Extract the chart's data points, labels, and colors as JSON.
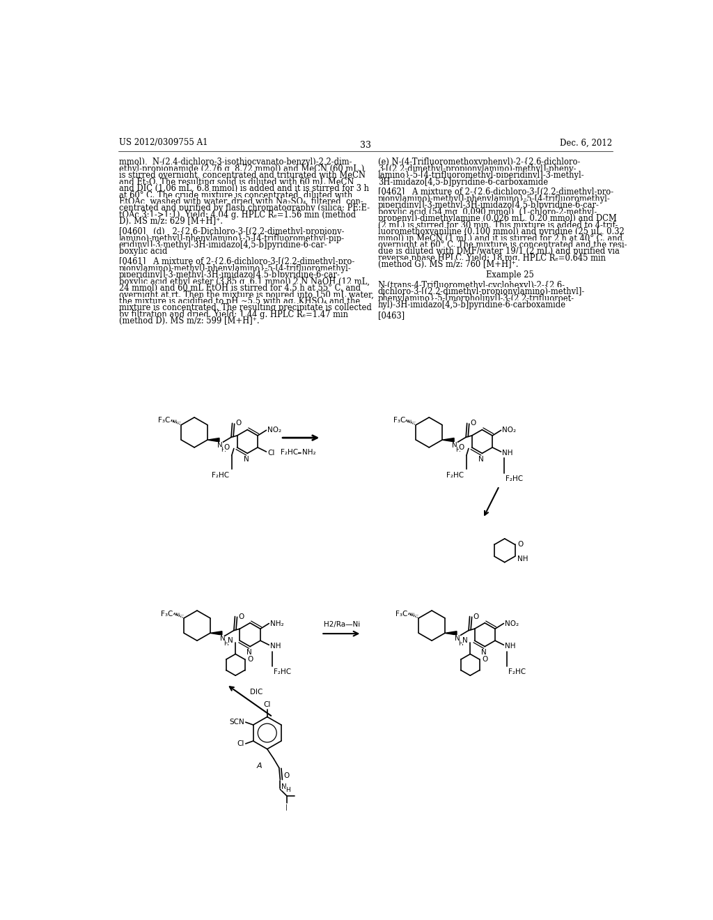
{
  "page_header_left": "US 2012/0309755 A1",
  "page_header_right": "Dec. 6, 2012",
  "page_number": "33",
  "background_color": "#ffffff",
  "left_col": [
    "mmol),  N-(2,4-dichloro-3-isothiocyanato-benzyl)-2,2-dim-",
    "ethyl-propionamide (2.76 g, 8.72 mmol) and MeCN (60 mL.)",
    "is stirred overnight, concentrated and triturated with MeCN",
    "and Et₂O. The resulting solid is diluted with 60 mL MeCN",
    "and DIC (1.06 mL, 6.8 mmol) is added and it is stirred for 3 h",
    "at 60° C. The crude mixture is concentrated, diluted with",
    "EtOAc, washed with water, dried with Na₂SO₄, filtered, con-",
    "centrated and purified by flash chromatography (silica; PE:E-",
    "tOAc 3:1->1:1). Yield: 4.04 g. HPLC Rₑ=1.56 min (method",
    "D). MS m/z: 629 [M+H]⁺.",
    "",
    "[0460]   (d)   2-{2,6-Dichloro-3-[(2,2-dimethyl-propiony-",
    "lamino)-methyl]-phenylamino}-5-[4-trifluoromethyl-pip-",
    "eridinyl]-3-methyl-3H-imidazo[4,5-b]pyridine-6-car-",
    "boxylic acid",
    "",
    "[0461]   A mixture of 2-{2,6-dichloro-3-[(2,2-dimethyl-pro-",
    "pionylamino)-methyl]-phenylamino}-5-[4-trifluoromethyl-",
    "piperidinyl]-3-methyl-3H-imidazo[4,5-b]pyridine-6-car-",
    "boxylic acid ethyl ester (3.85 g, 6.1 mmol) 2 N NaOH (12 mL,",
    "24 mmol) and 60 mL EtOH is stirred for 4.5 h at 55° C. and",
    "overnight at rt. Then the mixture is poured into 150 mL water,",
    "the mixture is acidified to pH ~5.5 with aq. KHSO₄ and the",
    "mixture is concentrated. The resulting precipitate is collected",
    "by filtration and dried. Yield: 1.44 g. HPLC Rₑ=1.47 min",
    "(method D). MS m/z: 599 [M+H]⁺."
  ],
  "right_col": [
    "(e) N-(4-Trifluoromethoxyphenyl)-2-{2,6-dichloro-",
    "3-[(2,2-dimethyl-propionylamino)-methyl]-pheny-",
    "lamino}-5-[4-trifluoromethyl-piperidinyl]-3-methyl-",
    "3H-imidazo[4,5-b]pyridine-6-carboxamide",
    "",
    "[0462]   A mixture of 2-{2,6-dichloro-3-[(2,2-dimethyl-pro-",
    "pionylamino)-methyl]-phenylamino}-5-[4-trifluoromethyl-",
    "piperidinyl]-3-methyl-3H-imidazo[4,5-b]pyridine-6-car-",
    "boxylic acid (54 mg, 0.090 mmol), (1-chloro-2-methyl-",
    "propenyl)-dimethylamine (0.026 mL, 0.20 mmol) and DCM",
    "(2 mL) is stirred for 30 min. This mixture is added to 4-trif-",
    "luoromethoxyaniline (0.100 mmol) and pyridine (25 μL, 0.32",
    "mmol) in MeCN (1 mL) and it is stirred for 2 h at 40° C. and",
    "overnight at 60° C. The mixture is concentrated and the resi-",
    "due is diluted with DMF/water 19/1 (2 mL) and purified via",
    "reverse phase HPLC. Yield: 18 mg. HPLC Rₑ=0.645 min",
    "(method G). MS m/z: 760 [M+H]⁺.",
    "",
    "Example 25",
    "",
    "N-(trans-4-Trifluoromethyl-cyclohexyl)-2-{2,6-",
    "dichloro-3-[(2,2-dimethyl-propionylamino)-methyl]-",
    "phenylamino}-5-[morpholinyl]-3-(2,2-trifluoroet-",
    "hyl)-3H-imidazo[4,5-b]pyridine-6-carboxamide",
    "",
    "[0463]"
  ]
}
